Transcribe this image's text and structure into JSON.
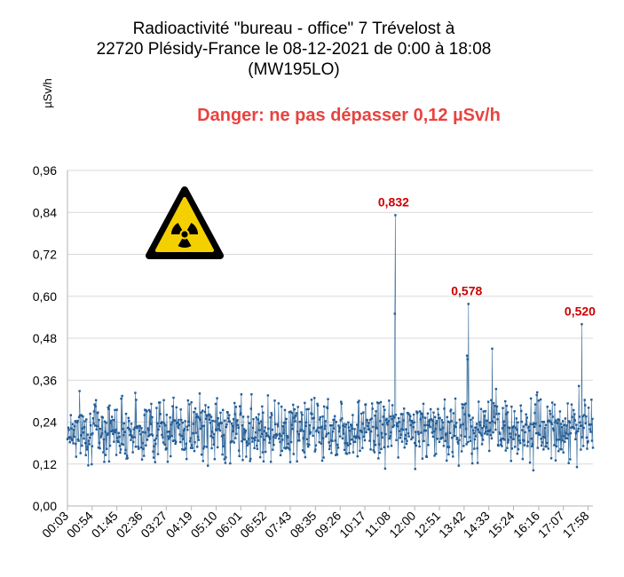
{
  "chart_data": {
    "type": "line",
    "title_lines": [
      "Radioactivité \"bureau - office\"  7 Trévelost à",
      "22720 Plésidy-France le 08-12-2021 de 0:00 à 18:08",
      "(MW195LO)"
    ],
    "ylabel": "µSv/h",
    "xlabel": "",
    "annotation": "Danger: ne pas dépasser 0,12 µSv/h",
    "ylim": [
      0,
      0.96
    ],
    "yticks": [
      "0,00",
      "0,12",
      "0,24",
      "0,36",
      "0,48",
      "0,60",
      "0,72",
      "0,84",
      "0,96"
    ],
    "xticks": [
      "00:03",
      "00:54",
      "01:45",
      "02:36",
      "03:27",
      "04:19",
      "05:10",
      "06:01",
      "06:52",
      "07:43",
      "08:35",
      "09:26",
      "10:17",
      "11:08",
      "12:00",
      "12:51",
      "13:42",
      "14:33",
      "15:24",
      "16:16",
      "17:07",
      "17:58"
    ],
    "series": [
      {
        "x_start": "00:03",
        "x_end": "18:08",
        "baseline_mean": 0.22,
        "baseline_range": [
          0.09,
          0.35
        ],
        "points": [
          {
            "x": "11:19",
            "y": 0.55
          },
          {
            "x": "11:20",
            "y": 0.832
          },
          {
            "x": "13:48",
            "y": 0.43
          },
          {
            "x": "13:49",
            "y": 0.42
          },
          {
            "x": "13:51",
            "y": 0.578
          },
          {
            "x": "14:40",
            "y": 0.45
          },
          {
            "x": "17:45",
            "y": 0.52
          }
        ]
      }
    ],
    "peak_labels": [
      {
        "x": "11:20",
        "y": 0.832,
        "label": "0,832"
      },
      {
        "x": "13:51",
        "y": 0.578,
        "label": "0,578"
      },
      {
        "x": "17:45",
        "y": 0.52,
        "label": "0,520"
      }
    ],
    "grid": true,
    "legend": "none"
  },
  "colors": {
    "series": "#1f5c99",
    "line": "#3d6f9e",
    "danger": "#e8433f",
    "peak_label": "#cc0000",
    "grid": "#d9d9d9",
    "axis": "#b3b3b3",
    "warning_yellow": "#f5d000"
  },
  "icons": {
    "warning": "radiation-warning-icon"
  }
}
